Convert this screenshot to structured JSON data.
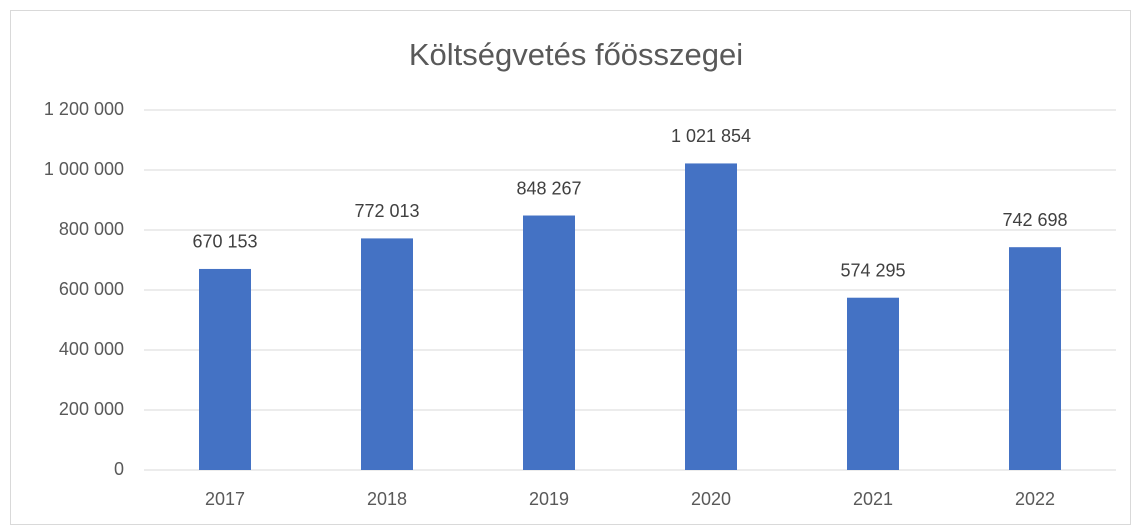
{
  "chart_data": {
    "type": "bar",
    "title": "Költségvetés főösszegei",
    "categories": [
      "2017",
      "2018",
      "2019",
      "2020",
      "2021",
      "2022"
    ],
    "values": [
      670153,
      772013,
      848267,
      1021854,
      574295,
      742698
    ],
    "value_labels": [
      "670 153",
      "772 013",
      "848 267",
      "1 021 854",
      "574 295",
      "742 698"
    ],
    "color": "#4472c4",
    "ylim": [
      0,
      1200000
    ],
    "yticks": [
      0,
      {
        "value": 200000,
        "label": "200 000"
      },
      {
        "value": 400000,
        "label": "400 000"
      },
      {
        "value": 600000,
        "label": "600 000"
      },
      {
        "value": 800000,
        "label": "800 000"
      },
      {
        "value": 1000000,
        "label": "1 000 000"
      },
      {
        "value": 1200000,
        "label": "1 200 000"
      }
    ],
    "grid": true
  }
}
